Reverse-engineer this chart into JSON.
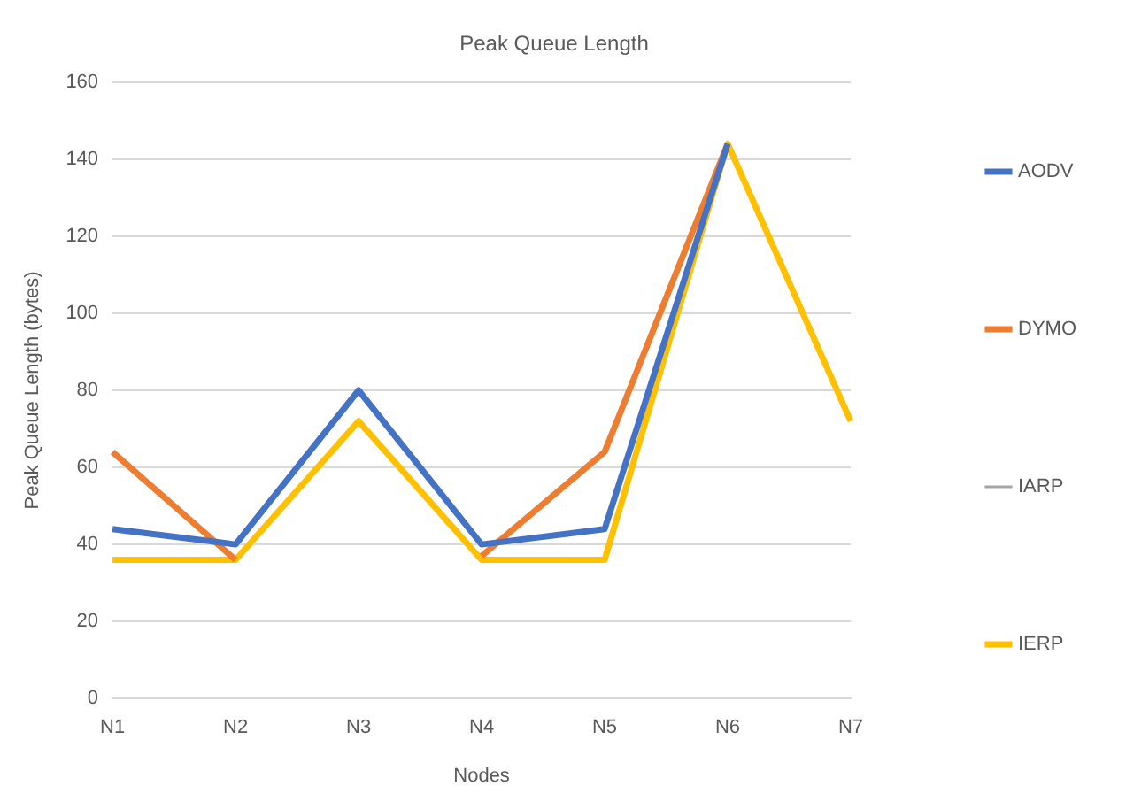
{
  "chart_data": {
    "type": "line",
    "title": "Peak Queue Length",
    "xlabel": "Nodes",
    "ylabel": "Peak Queue Length (bytes)",
    "categories": [
      "N1",
      "N2",
      "N3",
      "N4",
      "N5",
      "N6",
      "N7"
    ],
    "series": [
      {
        "name": "AODV",
        "color": "#4472c4",
        "values": [
          44,
          40,
          80,
          40,
          44,
          144,
          null
        ]
      },
      {
        "name": "DYMO",
        "color": "#ed7d31",
        "values": [
          64,
          36,
          null,
          37,
          64,
          144,
          null
        ]
      },
      {
        "name": "IARP",
        "color": "#a5a5a5",
        "marker": "circle",
        "values": [
          null,
          null,
          null,
          null,
          null,
          null,
          null
        ]
      },
      {
        "name": "IERP",
        "color": "#ffc000",
        "values": [
          36,
          36,
          72,
          36,
          36,
          144,
          72
        ]
      }
    ],
    "ylim": [
      0,
      160
    ],
    "yticks": [
      0,
      20,
      40,
      60,
      80,
      100,
      120,
      140,
      160
    ],
    "grid": "y",
    "legend": "right",
    "marker": "none",
    "line_style": "solid"
  }
}
